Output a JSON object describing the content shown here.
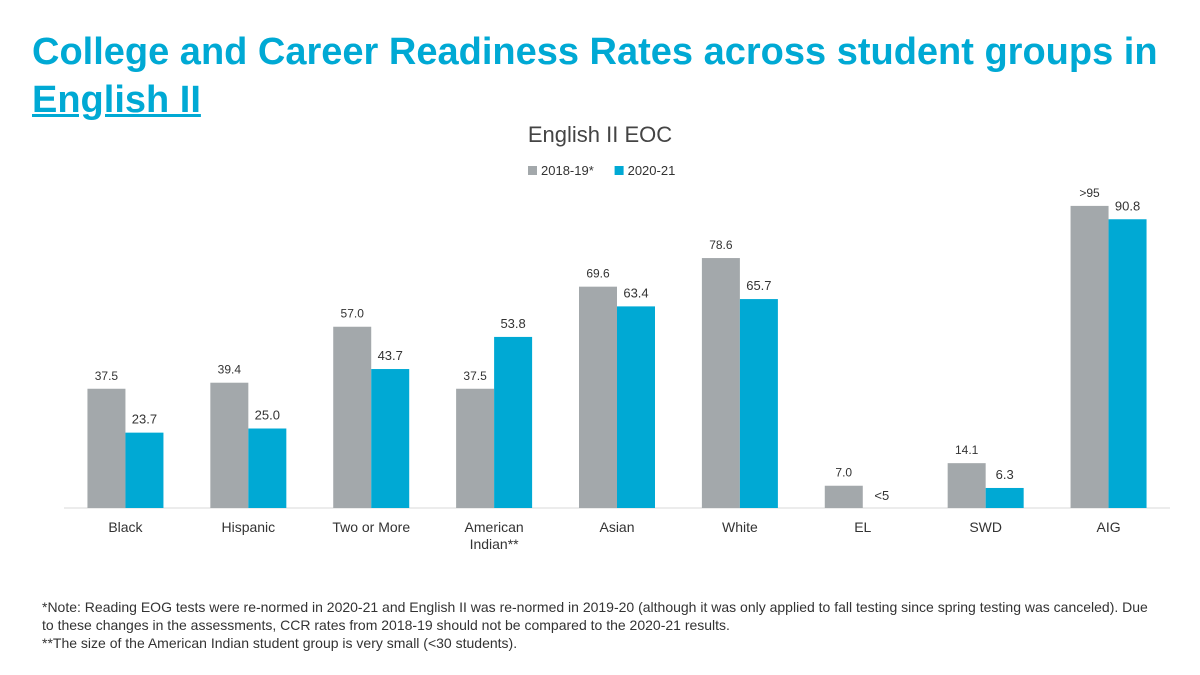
{
  "slide": {
    "title_main": "College and Career Readiness Rates across student groups in ",
    "title_link": "English II",
    "note_line1": "*Note: Reading EOG tests were re-normed in 2020-21 and English II was re-normed in 2019-20 (although it was only applied to fall testing since spring testing was canceled). Due to these changes in the assessments, CCR rates from 2018-19 should not be compared to the 2020-21 results.",
    "note_line2": "**The size of the American Indian student group is very small (<30 students)."
  },
  "colors": {
    "series_2018": "#a3a8ab",
    "series_2021": "#00a9d4",
    "title": "#00a9d4"
  },
  "chart_data": {
    "type": "bar",
    "title": "English II EOC",
    "categories": [
      "Black",
      "Hispanic",
      "Two or More",
      "American Indian**",
      "Asian",
      "White",
      "EL",
      "SWD",
      "AIG"
    ],
    "series": [
      {
        "name": "2018-19*",
        "values": [
          37.5,
          39.4,
          57.0,
          37.5,
          69.6,
          78.6,
          7.0,
          14.1,
          95
        ],
        "labels": [
          "37.5",
          "39.4",
          "57.0",
          "37.5",
          "69.6",
          "78.6",
          "7.0",
          "14.1",
          ">95"
        ]
      },
      {
        "name": "2020-21",
        "values": [
          23.7,
          25.0,
          43.7,
          53.8,
          63.4,
          65.7,
          0,
          6.3,
          90.8
        ],
        "labels": [
          "23.7",
          "25.0",
          "43.7",
          "53.8",
          "63.4",
          "65.7",
          "<5",
          "6.3",
          "90.8"
        ]
      }
    ],
    "ylim": [
      0,
      100
    ],
    "grid": false,
    "legend": "top-center"
  }
}
